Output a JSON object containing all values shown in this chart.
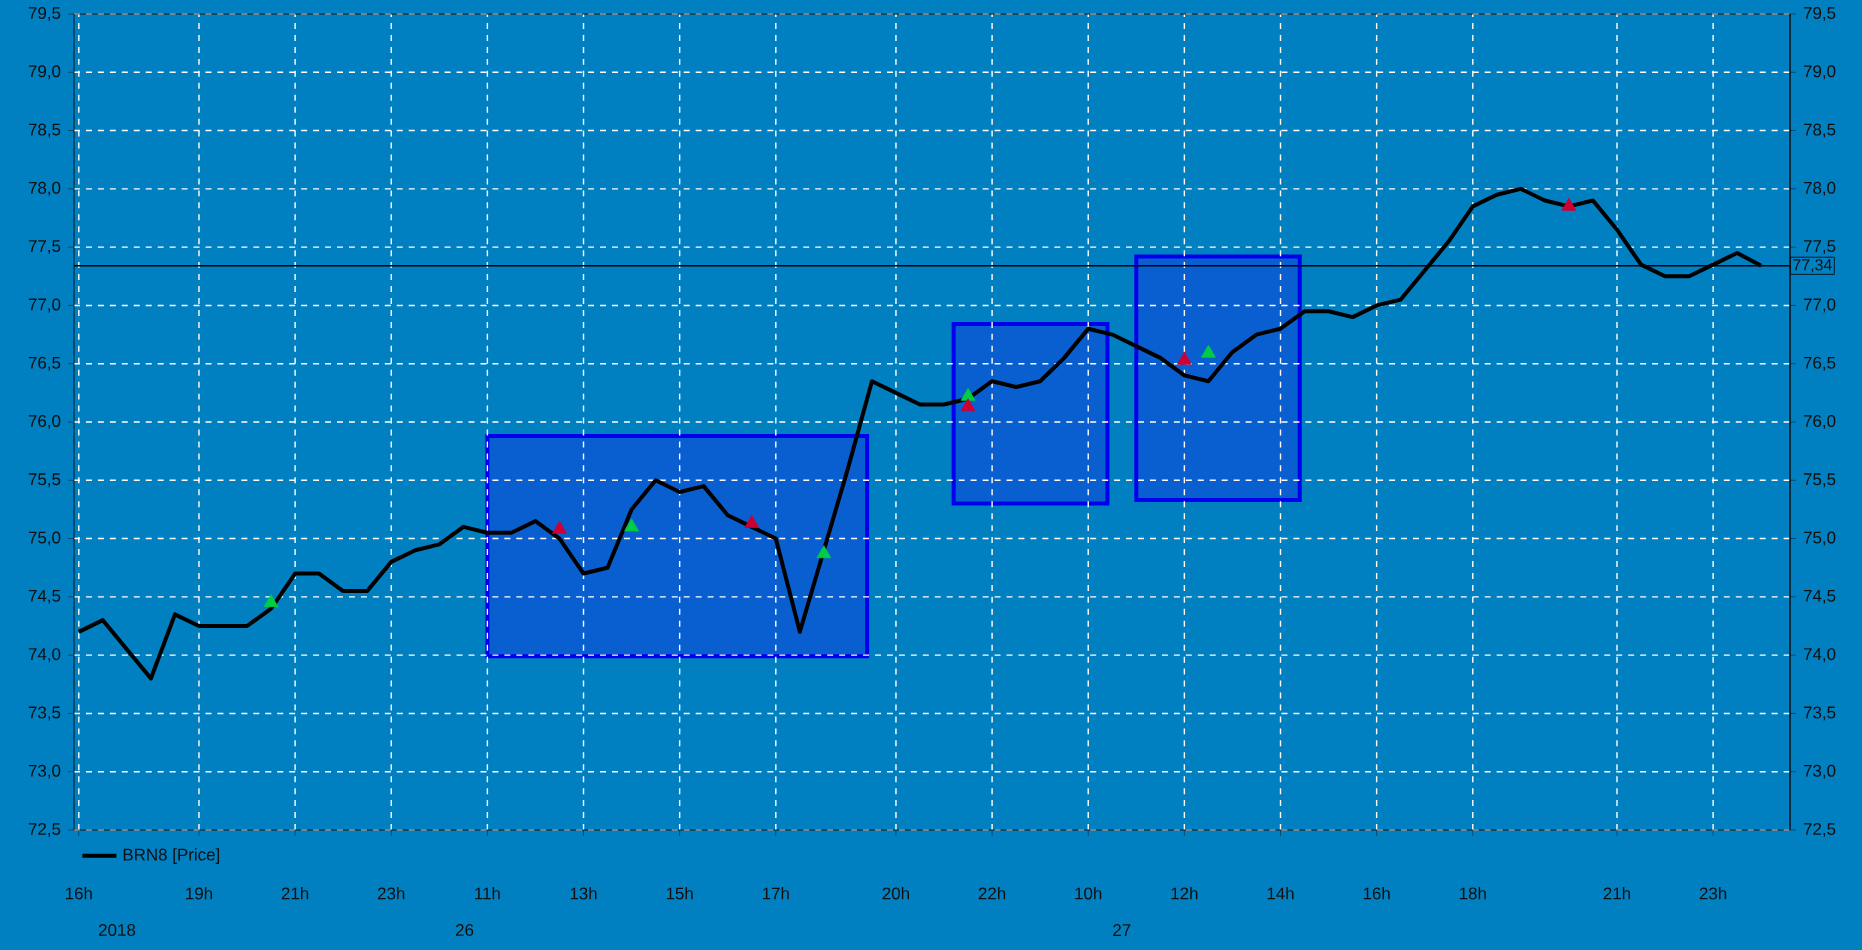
{
  "chart_data": {
    "type": "line",
    "legend": "bottom",
    "grid": true,
    "categories": [
      "16h",
      null,
      null,
      null,
      null,
      "19h",
      null,
      null,
      null,
      "21h",
      null,
      null,
      null,
      "23h",
      null,
      null,
      null,
      "11h",
      null,
      null,
      null,
      "13h",
      null,
      null,
      null,
      "15h",
      null,
      null,
      null,
      "17h",
      null,
      null,
      null,
      null,
      "20h",
      null,
      null,
      null,
      "22h",
      null,
      null,
      null,
      "10h",
      null,
      null,
      null,
      "12h",
      null,
      null,
      null,
      "14h",
      null,
      null,
      null,
      "16h",
      null,
      null,
      null,
      "18h",
      null,
      null,
      null,
      null,
      null,
      "21h",
      null,
      null,
      null,
      "23h",
      null,
      null
    ],
    "ylim": [
      72.5,
      79.5
    ],
    "yticks": [
      {
        "value": 72.5,
        "label": "72,5"
      },
      {
        "value": 73,
        "label": "73,0"
      },
      {
        "value": 73.5,
        "label": "73,5"
      },
      {
        "value": 74,
        "label": "74,0"
      },
      {
        "value": 74.5,
        "label": "74,5"
      },
      {
        "value": 75,
        "label": "75,0"
      },
      {
        "value": 75.5,
        "label": "75,5"
      },
      {
        "value": 76,
        "label": "76,0"
      },
      {
        "value": 76.5,
        "label": "76,5"
      },
      {
        "value": 77,
        "label": "77,0"
      },
      {
        "value": 77.5,
        "label": "77,5"
      },
      {
        "value": 78,
        "label": "78,0"
      },
      {
        "value": 78.5,
        "label": "78,5"
      },
      {
        "value": 79,
        "label": "79,0"
      },
      {
        "value": 79.5,
        "label": "79,5"
      }
    ],
    "y2lim": [
      72.5,
      79.5
    ],
    "y2ticks": [
      {
        "value": 72.5,
        "label": "72,5"
      },
      {
        "value": 73,
        "label": "73,0"
      },
      {
        "value": 73.5,
        "label": "73,5"
      },
      {
        "value": 74,
        "label": "74,0"
      },
      {
        "value": 74.5,
        "label": "74,5"
      },
      {
        "value": 75,
        "label": "75,0"
      },
      {
        "value": 75.5,
        "label": "75,5"
      },
      {
        "value": 76,
        "label": "76,0"
      },
      {
        "value": 76.5,
        "label": "76,5"
      },
      {
        "value": 77,
        "label": "77,0"
      },
      {
        "value": 77.5,
        "label": "77,5"
      },
      {
        "value": 78,
        "label": "78,0"
      },
      {
        "value": 78.5,
        "label": "78,5"
      },
      {
        "value": 79,
        "label": "79,0"
      },
      {
        "value": 79.5,
        "label": "79,5"
      }
    ],
    "ref_lines": [
      {
        "axis": "y",
        "value": 77.34,
        "label": "77,34",
        "color": "#000000"
      }
    ],
    "annotations": [
      "2018",
      "26",
      "27"
    ],
    "series": [
      {
        "name": "BRN8 [Price]",
        "color": "#000000",
        "values": [
          74.2,
          74.3,
          74.05,
          73.8,
          74.35,
          74.25,
          74.25,
          74.25,
          74.4,
          74.7,
          74.7,
          74.55,
          74.55,
          74.8,
          74.9,
          74.95,
          75.1,
          75.05,
          75.05,
          75.15,
          75.0,
          74.7,
          74.75,
          75.25,
          75.5,
          75.4,
          75.45,
          75.2,
          75.1,
          75.0,
          74.2,
          74.9,
          75.6,
          76.35,
          76.25,
          76.15,
          76.15,
          76.2,
          76.35,
          76.3,
          76.35,
          76.55,
          76.8,
          76.75,
          76.65,
          76.55,
          76.4,
          76.35,
          76.6,
          76.75,
          76.8,
          76.95,
          76.95,
          76.9,
          77.0,
          77.05,
          77.3,
          77.55,
          77.85,
          77.95,
          78.0,
          77.9,
          77.85,
          77.9,
          77.65,
          77.35,
          77.25,
          77.25,
          77.35,
          77.45,
          77.34
        ]
      },
      {
        "type": "scatter",
        "color": "#00cc44",
        "marker": "triangle",
        "values": [
          null,
          null,
          null,
          null,
          null,
          null,
          null,
          null,
          74.45,
          null,
          null,
          null,
          null,
          null,
          null,
          null,
          null,
          null,
          null,
          null,
          null,
          null,
          null,
          75.1,
          null,
          null,
          null,
          null,
          null,
          null,
          null,
          74.87,
          null,
          null,
          null,
          null,
          null,
          76.22,
          null,
          null,
          null,
          null,
          null,
          null,
          null,
          null,
          null,
          76.59,
          null,
          null,
          null,
          null,
          null,
          null,
          null,
          null,
          null,
          null,
          null,
          null,
          null,
          null,
          null,
          null,
          null,
          null,
          null,
          null,
          null,
          null,
          null
        ]
      },
      {
        "type": "scatter",
        "color": "#cc0033",
        "marker": "triangle",
        "values": [
          null,
          null,
          null,
          null,
          null,
          null,
          null,
          null,
          null,
          null,
          null,
          null,
          null,
          null,
          null,
          null,
          null,
          null,
          null,
          null,
          75.08,
          null,
          null,
          null,
          null,
          null,
          null,
          null,
          75.13,
          null,
          null,
          null,
          null,
          null,
          null,
          null,
          null,
          76.13,
          null,
          null,
          null,
          null,
          null,
          null,
          null,
          null,
          76.53,
          null,
          null,
          null,
          null,
          null,
          null,
          null,
          null,
          null,
          null,
          null,
          null,
          null,
          null,
          null,
          77.85,
          null,
          null,
          null,
          null,
          null,
          null,
          null,
          null
        ]
      }
    ]
  }
}
